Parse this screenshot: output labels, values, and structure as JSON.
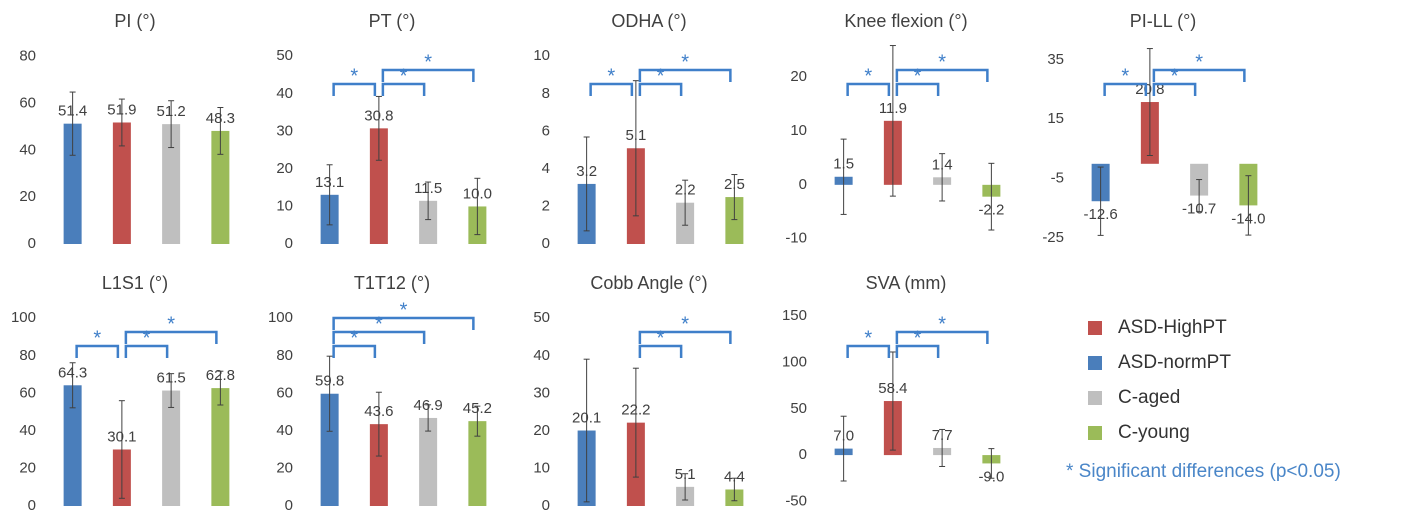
{
  "chart_data": [
    {
      "type": "bar",
      "title": "PI (°)",
      "values": [
        51.4,
        51.9,
        51.2,
        48.3
      ],
      "value_labels": [
        "51.4",
        "51.9",
        "51.2",
        "48.3"
      ],
      "errors": [
        13.5,
        10,
        10,
        10
      ],
      "colors": [
        "#4a7ebb",
        "#c0504d",
        "#bfbfbf",
        "#9bbb59"
      ],
      "ylim": [
        0,
        85
      ],
      "yticks": [
        0,
        20,
        40,
        60,
        80
      ],
      "brackets": []
    },
    {
      "type": "bar",
      "title": "PT (°)",
      "values": [
        13.1,
        30.8,
        11.5,
        10.0
      ],
      "value_labels": [
        "13.1",
        "30.8",
        "11.5",
        "10.0"
      ],
      "errors": [
        8,
        8.5,
        5,
        7.5
      ],
      "colors": [
        "#4a7ebb",
        "#c0504d",
        "#bfbfbf",
        "#9bbb59"
      ],
      "ylim": [
        0,
        53
      ],
      "yticks": [
        0,
        10,
        20,
        30,
        40,
        50
      ],
      "brackets": [
        {
          "from": 0,
          "to": 1,
          "label": "*"
        },
        {
          "from": 1,
          "to": 2,
          "label": "*"
        },
        {
          "from": 1,
          "to": 3,
          "label": "*"
        }
      ]
    },
    {
      "type": "bar",
      "title": "ODHA (°)",
      "values": [
        3.2,
        5.1,
        2.2,
        2.5
      ],
      "value_labels": [
        "3.2",
        "5.1",
        "2.2",
        "2.5"
      ],
      "errors": [
        2.5,
        3.6,
        1.2,
        1.2
      ],
      "colors": [
        "#4a7ebb",
        "#c0504d",
        "#bfbfbf",
        "#9bbb59"
      ],
      "ylim": [
        0,
        10.6
      ],
      "yticks": [
        0,
        2,
        4,
        6,
        8,
        10
      ],
      "brackets": [
        {
          "from": 0,
          "to": 1,
          "label": "*"
        },
        {
          "from": 1,
          "to": 2,
          "label": "*"
        },
        {
          "from": 1,
          "to": 3,
          "label": "*"
        }
      ]
    },
    {
      "type": "bar",
      "title": "Knee flexion (°)",
      "values": [
        1.5,
        11.9,
        1.4,
        -2.2
      ],
      "value_labels": [
        "1.5",
        "11.9",
        "1.4",
        "-2.2"
      ],
      "errors": [
        7,
        14,
        4.4,
        6.2
      ],
      "colors": [
        "#4a7ebb",
        "#c0504d",
        "#bfbfbf",
        "#9bbb59"
      ],
      "ylim": [
        -11,
        26
      ],
      "yticks": [
        -10,
        0,
        10,
        20
      ],
      "brackets": [
        {
          "from": 0,
          "to": 1,
          "label": "*"
        },
        {
          "from": 1,
          "to": 2,
          "label": "*"
        },
        {
          "from": 1,
          "to": 3,
          "label": "*"
        }
      ]
    },
    {
      "type": "bar",
      "title": "PI-LL (°)",
      "values": [
        -12.6,
        20.8,
        -10.7,
        -14.0
      ],
      "value_labels": [
        "-12.6",
        "20.8",
        "-10.7",
        "-14.0"
      ],
      "errors": [
        11.5,
        18,
        5.4,
        10
      ],
      "colors": [
        "#4a7ebb",
        "#c0504d",
        "#bfbfbf",
        "#9bbb59"
      ],
      "ylim": [
        -27,
        40
      ],
      "yticks": [
        -25,
        -5,
        15,
        35
      ],
      "brackets": [
        {
          "from": 0,
          "to": 1,
          "label": "*"
        },
        {
          "from": 1,
          "to": 2,
          "label": "*"
        },
        {
          "from": 1,
          "to": 3,
          "label": "*"
        }
      ]
    },
    {
      "type": "bar",
      "title": "L1S1 (°)",
      "values": [
        64.3,
        30.1,
        61.5,
        62.8
      ],
      "value_labels": [
        "64.3",
        "30.1",
        "61.5",
        "62.8"
      ],
      "errors": [
        12,
        26,
        9,
        9
      ],
      "colors": [
        "#4a7ebb",
        "#c0504d",
        "#bfbfbf",
        "#9bbb59"
      ],
      "ylim": [
        0,
        106
      ],
      "yticks": [
        0,
        20,
        40,
        60,
        80,
        100
      ],
      "brackets": [
        {
          "from": 0,
          "to": 1,
          "label": "*"
        },
        {
          "from": 1,
          "to": 2,
          "label": "*"
        },
        {
          "from": 1,
          "to": 3,
          "label": "*"
        }
      ]
    },
    {
      "type": "bar",
      "title": "T1T12 (°)",
      "values": [
        59.8,
        43.6,
        46.9,
        45.2
      ],
      "value_labels": [
        "59.8",
        "43.6",
        "46.9",
        "45.2"
      ],
      "errors": [
        20,
        17,
        7,
        8
      ],
      "colors": [
        "#4a7ebb",
        "#c0504d",
        "#bfbfbf",
        "#9bbb59"
      ],
      "ylim": [
        0,
        106
      ],
      "yticks": [
        0,
        20,
        40,
        60,
        80,
        100
      ],
      "brackets": [
        {
          "from": 0,
          "to": 1,
          "label": "*"
        },
        {
          "from": 0,
          "to": 2,
          "label": "*"
        },
        {
          "from": 0,
          "to": 3,
          "label": "*"
        }
      ]
    },
    {
      "type": "bar",
      "title": "Cobb Angle (°)",
      "values": [
        20.1,
        22.2,
        5.1,
        4.4
      ],
      "value_labels": [
        "20.1",
        "22.2",
        "5.1",
        "4.4"
      ],
      "errors": [
        19,
        14.5,
        3.5,
        3
      ],
      "colors": [
        "#4a7ebb",
        "#c0504d",
        "#bfbfbf",
        "#9bbb59"
      ],
      "ylim": [
        0,
        53
      ],
      "yticks": [
        0,
        10,
        20,
        30,
        40,
        50
      ],
      "brackets": [
        {
          "from": 1,
          "to": 2,
          "label": "*"
        },
        {
          "from": 1,
          "to": 3,
          "label": "*"
        }
      ]
    },
    {
      "type": "bar",
      "title": "SVA (mm)",
      "values": [
        7.0,
        58.4,
        7.7,
        -9.0
      ],
      "value_labels": [
        "7.0",
        "58.4",
        "7.7",
        "-9.0"
      ],
      "errors": [
        35,
        53,
        20,
        16
      ],
      "colors": [
        "#4a7ebb",
        "#c0504d",
        "#bfbfbf",
        "#9bbb59"
      ],
      "ylim": [
        -55,
        160
      ],
      "yticks": [
        -50,
        0,
        50,
        100,
        150
      ],
      "brackets": [
        {
          "from": 0,
          "to": 1,
          "label": "*"
        },
        {
          "from": 1,
          "to": 2,
          "label": "*"
        },
        {
          "from": 1,
          "to": 3,
          "label": "*"
        }
      ]
    }
  ],
  "legend": {
    "items": [
      {
        "name": "ASD-HighPT",
        "color": "#c0504d"
      },
      {
        "name": "ASD-normPT",
        "color": "#4a7ebb"
      },
      {
        "name": "C-aged",
        "color": "#bfbfbf"
      },
      {
        "name": "C-young",
        "color": "#9bbb59"
      }
    ],
    "note": "* Significant differences (p<0.05)"
  }
}
